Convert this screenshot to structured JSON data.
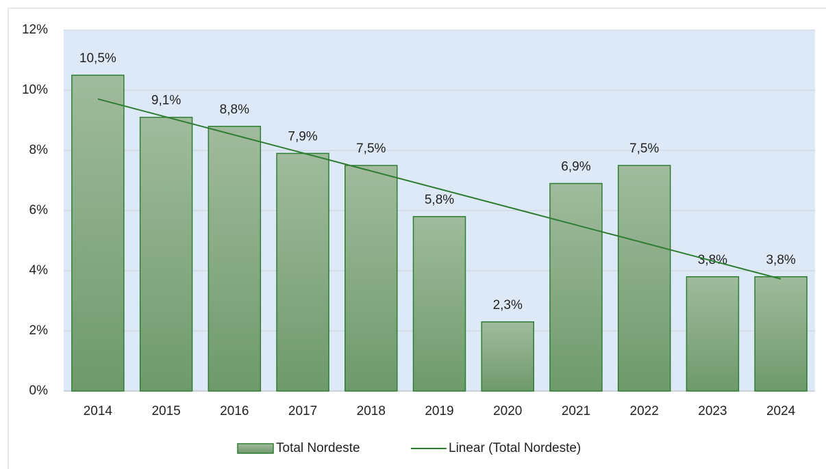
{
  "chart_data": {
    "type": "bar",
    "categories": [
      "2014",
      "2015",
      "2016",
      "2017",
      "2018",
      "2019",
      "2020",
      "2021",
      "2022",
      "2023",
      "2024"
    ],
    "series": [
      {
        "name": "Total Nordeste",
        "color": "#86a883",
        "values": [
          10.5,
          9.1,
          8.8,
          7.9,
          7.5,
          5.8,
          2.3,
          6.9,
          7.5,
          3.8,
          3.8
        ],
        "value_labels": [
          "10,5%",
          "9,1%",
          "8,8%",
          "7,9%",
          "7,5%",
          "5,8%",
          "2,3%",
          "6,9%",
          "7,5%",
          "3,8%",
          "3,8%"
        ]
      }
    ],
    "trendline": {
      "type": "linear",
      "name": "Linear (Total Nordeste)",
      "color": "#2e7d32"
    },
    "ylim": [
      0,
      12
    ],
    "yticks": [
      {
        "value": 0,
        "label": "0%"
      },
      {
        "value": 2,
        "label": "2%"
      },
      {
        "value": 4,
        "label": "4%"
      },
      {
        "value": 6,
        "label": "6%"
      },
      {
        "value": 8,
        "label": "8%"
      },
      {
        "value": 10,
        "label": "10%"
      },
      {
        "value": 12,
        "label": "12%"
      }
    ],
    "grid": true,
    "legend": "bottom"
  }
}
